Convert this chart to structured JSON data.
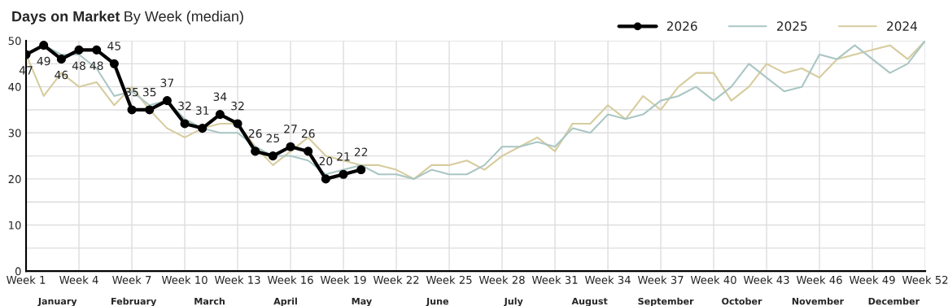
{
  "chart_data": {
    "type": "line",
    "title": "Days on Market",
    "subtitle": "By Week (median)",
    "categories": [
      "Week 1",
      null,
      null,
      "Week 4",
      null,
      null,
      "Week 7",
      null,
      null,
      "Week 10",
      null,
      null,
      "Week 13",
      null,
      null,
      "Week 16",
      null,
      null,
      "Week 19",
      null,
      null,
      "Week 22",
      null,
      null,
      "Week 25",
      null,
      null,
      "Week 28",
      null,
      null,
      "Week 31",
      null,
      null,
      "Week 34",
      null,
      null,
      "Week 37",
      null,
      null,
      "Week 40",
      null,
      null,
      "Week 43",
      null,
      null,
      "Week 46",
      null,
      null,
      "Week 49",
      null,
      null,
      "Week 52"
    ],
    "series": [
      {
        "name": "2026",
        "color": "#000000",
        "marker": "circle",
        "data_labels": true,
        "values": [
          47,
          49,
          46,
          48,
          48,
          45,
          35,
          35,
          37,
          32,
          31,
          34,
          32,
          26,
          25,
          27,
          26,
          20,
          21,
          22,
          null,
          null,
          null,
          null,
          null,
          null,
          null,
          null,
          null,
          null,
          null,
          null,
          null,
          null,
          null,
          null,
          null,
          null,
          null,
          null,
          null,
          null,
          null,
          null,
          null,
          null,
          null,
          null,
          null,
          null,
          null,
          null
        ]
      },
      {
        "name": "2025",
        "color": "#a9c6c4",
        "values": [
          47,
          49,
          47,
          47,
          44,
          38,
          39,
          36,
          37,
          33,
          31,
          30,
          30,
          27,
          25,
          25,
          24,
          21,
          22,
          23,
          21,
          21,
          20,
          22,
          21,
          21,
          23,
          27,
          27,
          28,
          27,
          31,
          30,
          34,
          33,
          34,
          37,
          38,
          40,
          37,
          40,
          45,
          42,
          39,
          40,
          47,
          46,
          49,
          46,
          43,
          45,
          50
        ]
      },
      {
        "name": "2024",
        "color": "#d6cc9e",
        "values": [
          47,
          38,
          43,
          40,
          41,
          36,
          40,
          35,
          31,
          29,
          31,
          32,
          32,
          27,
          23,
          26,
          29,
          25,
          24,
          23,
          23,
          22,
          20,
          23,
          23,
          24,
          22,
          25,
          27,
          29,
          26,
          32,
          32,
          36,
          33,
          38,
          35,
          40,
          43,
          43,
          37,
          40,
          45,
          43,
          44,
          42,
          46,
          47,
          48,
          49,
          46,
          50
        ]
      }
    ],
    "annotations": [
      "January",
      "February",
      "March",
      "April",
      "May",
      "June",
      "July",
      "August",
      "September",
      "October",
      "November",
      "December"
    ],
    "ylim": [
      0,
      50
    ],
    "yticks": [
      0,
      {
        "value": 5,
        "label": null
      },
      10,
      {
        "value": 15,
        "label": null
      },
      20,
      {
        "value": 25,
        "label": null
      },
      30,
      {
        "value": 35,
        "label": null
      },
      40,
      {
        "value": 45,
        "label": null
      },
      50
    ],
    "grid": true,
    "legend": "top right",
    "line_style": "solid"
  }
}
